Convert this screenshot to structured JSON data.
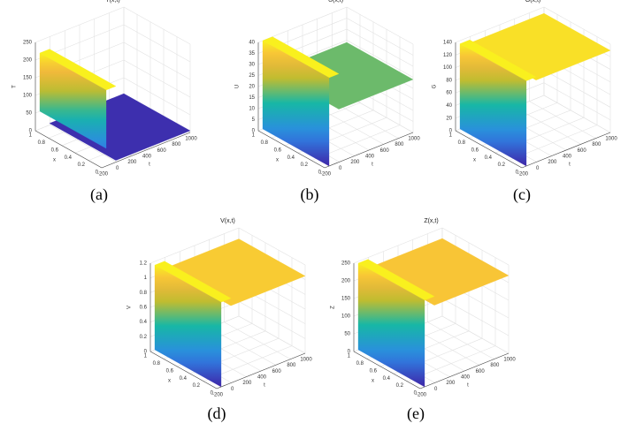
{
  "panels": [
    {
      "title": "T(x,t)",
      "caption": "(a)",
      "zlabel": "T",
      "xlabel": "x",
      "tlabel": "t",
      "xlim": [
        0,
        1
      ],
      "tlim": [
        -200,
        1000
      ],
      "zlim": [
        0,
        250
      ],
      "xticks": [
        0,
        0.2,
        0.4,
        0.6,
        0.8,
        1
      ],
      "tticks": [
        -200,
        0,
        200,
        400,
        600,
        800,
        1000
      ],
      "zticks": [
        0,
        50,
        100,
        150,
        200,
        250
      ],
      "surface": {
        "peak": 215,
        "plateau": 5,
        "wall_bottom": 50
      }
    },
    {
      "title": "U(x,t)",
      "caption": "(b)",
      "zlabel": "U",
      "xlabel": "x",
      "tlabel": "t",
      "xlim": [
        0,
        1
      ],
      "tlim": [
        -200,
        1000
      ],
      "zlim": [
        0,
        40
      ],
      "xticks": [
        0,
        0.2,
        0.4,
        0.6,
        0.8,
        1
      ],
      "tticks": [
        -200,
        0,
        200,
        400,
        600,
        800,
        1000
      ],
      "zticks": [
        0,
        5,
        10,
        15,
        20,
        25,
        30,
        35,
        40
      ],
      "surface": {
        "peak": 40,
        "plateau": 24,
        "wall_bottom": 0
      }
    },
    {
      "title": "G(x,t)",
      "caption": "(c)",
      "zlabel": "G",
      "xlabel": "x",
      "tlabel": "t",
      "xlim": [
        0,
        1
      ],
      "tlim": [
        -200,
        1000
      ],
      "zlim": [
        0,
        140
      ],
      "xticks": [
        0,
        0.2,
        0.4,
        0.6,
        0.8,
        1
      ],
      "tticks": [
        -200,
        0,
        200,
        400,
        600,
        800,
        1000
      ],
      "zticks": [
        0,
        20,
        40,
        60,
        80,
        100,
        120,
        140
      ],
      "surface": {
        "peak": 135,
        "plateau": 130,
        "wall_bottom": 0
      }
    },
    {
      "title": "V(x,t)",
      "caption": "(d)",
      "zlabel": "V",
      "xlabel": "x",
      "tlabel": "t",
      "xlim": [
        0,
        1
      ],
      "tlim": [
        -200,
        1000
      ],
      "zlim": [
        0,
        1.2
      ],
      "xticks": [
        0,
        0.2,
        0.4,
        0.6,
        0.8,
        1
      ],
      "tticks": [
        -200,
        0,
        200,
        400,
        600,
        800,
        1000
      ],
      "zticks": [
        0,
        0.2,
        0.4,
        0.6,
        0.8,
        1,
        1.2
      ],
      "surface": {
        "peak": 1.15,
        "plateau": 1.05,
        "wall_bottom": 0
      }
    },
    {
      "title": "Z(x,t)",
      "caption": "(e)",
      "zlabel": "Z",
      "xlabel": "x",
      "tlabel": "t",
      "xlim": [
        0,
        1
      ],
      "tlim": [
        -200,
        1000
      ],
      "zlim": [
        0,
        250
      ],
      "xticks": [
        0,
        0.2,
        0.4,
        0.6,
        0.8,
        1
      ],
      "tticks": [
        -200,
        0,
        200,
        400,
        600,
        800,
        1000
      ],
      "zticks": [
        0,
        50,
        100,
        150,
        200,
        250
      ],
      "surface": {
        "peak": 245,
        "plateau": 220,
        "wall_bottom": 0
      }
    }
  ]
}
